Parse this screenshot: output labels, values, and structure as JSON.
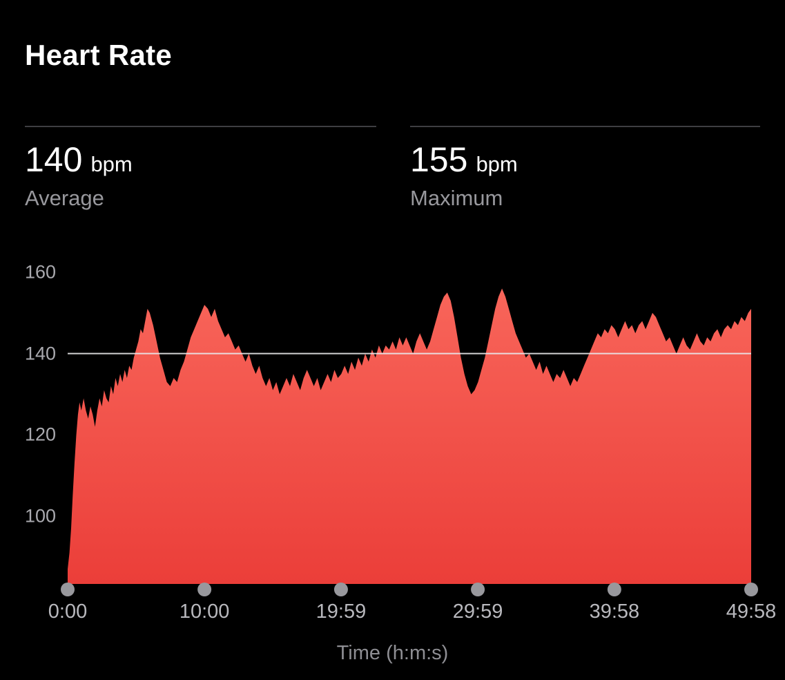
{
  "title": "Heart Rate",
  "stats": [
    {
      "value": "140",
      "unit": "bpm",
      "label": "Average"
    },
    {
      "value": "155",
      "unit": "bpm",
      "label": "Maximum"
    }
  ],
  "chart_data": {
    "type": "area",
    "title": "Heart Rate",
    "xlabel": "Time (h:m:s)",
    "ylabel": "bpm",
    "ylim": [
      83,
      160
    ],
    "y_ticks": [
      160,
      140,
      120,
      100
    ],
    "x_tick_labels": [
      "0:00",
      "10:00",
      "19:59",
      "29:59",
      "39:58",
      "49:58"
    ],
    "x_tick_seconds": [
      0,
      600,
      1199,
      1799,
      2398,
      2998
    ],
    "duration_seconds": 2998,
    "average_bpm": 140,
    "maximum_bpm": 155,
    "average_reference_line": 140,
    "grid": "reference-line-only",
    "legend": "none",
    "colors": {
      "area_top": "#f8655a",
      "area_bottom": "#eb3e39",
      "reference_line": "#e9e9ec",
      "axis_dot": "#98989d",
      "background": "#000000"
    },
    "series": [
      {
        "name": "Heart Rate (bpm)",
        "points": [
          [
            0,
            87
          ],
          [
            8,
            91
          ],
          [
            15,
            97
          ],
          [
            22,
            105
          ],
          [
            30,
            113
          ],
          [
            38,
            120
          ],
          [
            45,
            125
          ],
          [
            52,
            128
          ],
          [
            60,
            126
          ],
          [
            70,
            129
          ],
          [
            80,
            126
          ],
          [
            90,
            124
          ],
          [
            100,
            127
          ],
          [
            110,
            125
          ],
          [
            120,
            122
          ],
          [
            130,
            126
          ],
          [
            140,
            129
          ],
          [
            150,
            127
          ],
          [
            160,
            131
          ],
          [
            170,
            129
          ],
          [
            180,
            128
          ],
          [
            190,
            132
          ],
          [
            200,
            130
          ],
          [
            210,
            134
          ],
          [
            220,
            132
          ],
          [
            230,
            135
          ],
          [
            240,
            133
          ],
          [
            250,
            136
          ],
          [
            260,
            134
          ],
          [
            270,
            137
          ],
          [
            280,
            136
          ],
          [
            290,
            139
          ],
          [
            300,
            141
          ],
          [
            310,
            143
          ],
          [
            320,
            146
          ],
          [
            330,
            145
          ],
          [
            340,
            148
          ],
          [
            350,
            151
          ],
          [
            360,
            150
          ],
          [
            375,
            147
          ],
          [
            390,
            143
          ],
          [
            405,
            139
          ],
          [
            420,
            136
          ],
          [
            435,
            133
          ],
          [
            450,
            132
          ],
          [
            465,
            134
          ],
          [
            480,
            133
          ],
          [
            495,
            136
          ],
          [
            510,
            138
          ],
          [
            525,
            141
          ],
          [
            540,
            144
          ],
          [
            555,
            146
          ],
          [
            570,
            148
          ],
          [
            585,
            150
          ],
          [
            600,
            152
          ],
          [
            615,
            151
          ],
          [
            630,
            149
          ],
          [
            645,
            151
          ],
          [
            660,
            148
          ],
          [
            675,
            146
          ],
          [
            690,
            144
          ],
          [
            705,
            145
          ],
          [
            720,
            143
          ],
          [
            735,
            141
          ],
          [
            750,
            142
          ],
          [
            765,
            140
          ],
          [
            780,
            138
          ],
          [
            795,
            140
          ],
          [
            810,
            137
          ],
          [
            825,
            135
          ],
          [
            840,
            137
          ],
          [
            855,
            134
          ],
          [
            870,
            132
          ],
          [
            885,
            134
          ],
          [
            900,
            131
          ],
          [
            915,
            133
          ],
          [
            930,
            130
          ],
          [
            945,
            132
          ],
          [
            960,
            134
          ],
          [
            975,
            132
          ],
          [
            990,
            135
          ],
          [
            1005,
            133
          ],
          [
            1020,
            131
          ],
          [
            1035,
            134
          ],
          [
            1050,
            136
          ],
          [
            1065,
            134
          ],
          [
            1080,
            132
          ],
          [
            1095,
            134
          ],
          [
            1110,
            131
          ],
          [
            1125,
            133
          ],
          [
            1140,
            135
          ],
          [
            1155,
            133
          ],
          [
            1170,
            136
          ],
          [
            1185,
            134
          ],
          [
            1200,
            135
          ],
          [
            1215,
            137
          ],
          [
            1230,
            135
          ],
          [
            1245,
            138
          ],
          [
            1260,
            136
          ],
          [
            1275,
            139
          ],
          [
            1290,
            137
          ],
          [
            1305,
            140
          ],
          [
            1320,
            138
          ],
          [
            1335,
            141
          ],
          [
            1350,
            139
          ],
          [
            1365,
            142
          ],
          [
            1380,
            140
          ],
          [
            1395,
            142
          ],
          [
            1410,
            141
          ],
          [
            1425,
            143
          ],
          [
            1440,
            141
          ],
          [
            1455,
            144
          ],
          [
            1470,
            142
          ],
          [
            1485,
            144
          ],
          [
            1500,
            142
          ],
          [
            1515,
            140
          ],
          [
            1530,
            143
          ],
          [
            1545,
            145
          ],
          [
            1560,
            143
          ],
          [
            1575,
            141
          ],
          [
            1590,
            143
          ],
          [
            1605,
            146
          ],
          [
            1620,
            149
          ],
          [
            1635,
            152
          ],
          [
            1650,
            154
          ],
          [
            1665,
            155
          ],
          [
            1680,
            153
          ],
          [
            1695,
            149
          ],
          [
            1710,
            144
          ],
          [
            1725,
            139
          ],
          [
            1740,
            135
          ],
          [
            1755,
            132
          ],
          [
            1770,
            130
          ],
          [
            1785,
            131
          ],
          [
            1800,
            133
          ],
          [
            1815,
            136
          ],
          [
            1830,
            139
          ],
          [
            1845,
            143
          ],
          [
            1860,
            147
          ],
          [
            1875,
            151
          ],
          [
            1890,
            154
          ],
          [
            1905,
            156
          ],
          [
            1920,
            154
          ],
          [
            1935,
            151
          ],
          [
            1950,
            148
          ],
          [
            1965,
            145
          ],
          [
            1980,
            143
          ],
          [
            1995,
            141
          ],
          [
            2010,
            139
          ],
          [
            2025,
            140
          ],
          [
            2040,
            138
          ],
          [
            2055,
            136
          ],
          [
            2070,
            138
          ],
          [
            2085,
            135
          ],
          [
            2100,
            137
          ],
          [
            2115,
            135
          ],
          [
            2130,
            133
          ],
          [
            2145,
            135
          ],
          [
            2160,
            134
          ],
          [
            2175,
            136
          ],
          [
            2190,
            134
          ],
          [
            2205,
            132
          ],
          [
            2220,
            134
          ],
          [
            2235,
            133
          ],
          [
            2250,
            135
          ],
          [
            2265,
            137
          ],
          [
            2280,
            139
          ],
          [
            2295,
            141
          ],
          [
            2310,
            143
          ],
          [
            2325,
            145
          ],
          [
            2340,
            144
          ],
          [
            2355,
            146
          ],
          [
            2370,
            145
          ],
          [
            2385,
            147
          ],
          [
            2400,
            146
          ],
          [
            2415,
            144
          ],
          [
            2430,
            146
          ],
          [
            2445,
            148
          ],
          [
            2460,
            146
          ],
          [
            2475,
            147
          ],
          [
            2490,
            145
          ],
          [
            2505,
            147
          ],
          [
            2520,
            148
          ],
          [
            2535,
            146
          ],
          [
            2550,
            148
          ],
          [
            2565,
            150
          ],
          [
            2580,
            149
          ],
          [
            2595,
            147
          ],
          [
            2610,
            145
          ],
          [
            2625,
            143
          ],
          [
            2640,
            144
          ],
          [
            2655,
            142
          ],
          [
            2670,
            140
          ],
          [
            2685,
            142
          ],
          [
            2700,
            144
          ],
          [
            2715,
            142
          ],
          [
            2730,
            141
          ],
          [
            2745,
            143
          ],
          [
            2760,
            145
          ],
          [
            2775,
            143
          ],
          [
            2790,
            142
          ],
          [
            2805,
            144
          ],
          [
            2820,
            143
          ],
          [
            2835,
            145
          ],
          [
            2850,
            146
          ],
          [
            2865,
            144
          ],
          [
            2880,
            146
          ],
          [
            2895,
            147
          ],
          [
            2910,
            146
          ],
          [
            2925,
            148
          ],
          [
            2940,
            147
          ],
          [
            2955,
            149
          ],
          [
            2970,
            148
          ],
          [
            2985,
            150
          ],
          [
            2998,
            151
          ]
        ]
      }
    ]
  }
}
